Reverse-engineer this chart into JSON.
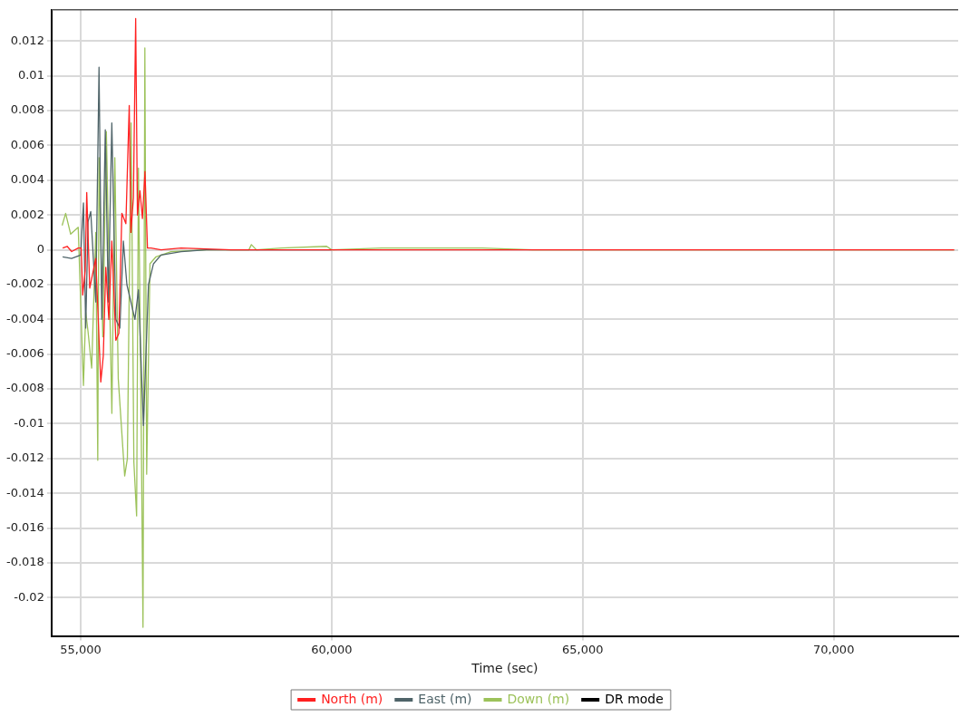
{
  "chart_data": {
    "type": "line",
    "xlabel": "Time (sec)",
    "xlim": [
      54420,
      72480
    ],
    "xticks": [
      {
        "value": 55000,
        "label": "55,000"
      },
      {
        "value": 60000,
        "label": "60,000"
      },
      {
        "value": 65000,
        "label": "65,000"
      },
      {
        "value": 70000,
        "label": "70,000"
      }
    ],
    "ylim": [
      -0.0222,
      0.0138
    ],
    "yticks": [
      -0.02,
      -0.018,
      -0.016,
      -0.014,
      -0.012,
      -0.01,
      -0.008,
      -0.006,
      -0.004,
      -0.002,
      0,
      0.002,
      0.004,
      0.006,
      0.008,
      0.01,
      0.012
    ],
    "grid": true,
    "legend": "bottom",
    "marker": "none",
    "line_style": "solid",
    "series": [
      {
        "name": "North (m)",
        "color": "#ff2020",
        "x": [
          54640,
          54730,
          54820,
          54950,
          55010,
          55040,
          55090,
          55120,
          55180,
          55300,
          55400,
          55450,
          55500,
          55560,
          55620,
          55700,
          55760,
          55820,
          55900,
          55967,
          56000,
          56050,
          56095,
          56130,
          56180,
          56230,
          56280,
          56330,
          56400,
          56600,
          57000,
          58000,
          60000,
          65000,
          72400
        ],
        "values": [
          0.0001,
          0.0002,
          -0.0001,
          0.0001,
          0.0001,
          -0.0026,
          -0.0012,
          0.0033,
          -0.0022,
          -0.0005,
          -0.0076,
          -0.0061,
          -0.001,
          -0.004,
          0.0005,
          -0.0052,
          -0.0048,
          0.0021,
          0.0015,
          0.0083,
          0.001,
          0.003,
          0.0133,
          0.002,
          0.0034,
          0.0018,
          0.0045,
          0.0001,
          0.0001,
          0,
          0.0001,
          0,
          0,
          0,
          0
        ]
      },
      {
        "name": "East (m)",
        "color": "#4f6469",
        "x": [
          54640,
          54818,
          55000,
          55055,
          55100,
          55146,
          55200,
          55300,
          55365,
          55420,
          55490,
          55550,
          55620,
          55700,
          55780,
          55850,
          55920,
          56000,
          56080,
          56150,
          56250,
          56300,
          56350,
          56450,
          56600,
          57000,
          57500,
          60000
        ],
        "values": [
          -0.0004,
          -0.0005,
          -0.0003,
          0.0027,
          -0.0045,
          0.0016,
          0.0022,
          -0.003,
          0.0105,
          -0.004,
          0.0069,
          -0.003,
          0.0073,
          -0.004,
          -0.0045,
          0.0005,
          -0.002,
          -0.003,
          -0.004,
          -0.0023,
          -0.0101,
          -0.006,
          -0.002,
          -0.0008,
          -0.0003,
          -0.0001,
          0,
          0
        ]
      },
      {
        "name": "Down (m)",
        "color": "#9cc25a",
        "x": [
          54630,
          54700,
          54800,
          54950,
          55055,
          55100,
          55146,
          55219,
          55300,
          55340,
          55365,
          55440,
          55511,
          55621,
          55680,
          55748,
          55876,
          55930,
          56004,
          56059,
          56114,
          56150,
          56205,
          56241,
          56278,
          56314,
          56380,
          56500,
          56800,
          57500,
          58350,
          58400,
          58500,
          59000,
          59900,
          60000,
          61000,
          62000,
          63000,
          64000,
          72400
        ],
        "values": [
          0.0014,
          0.0021,
          0.0009,
          0.0013,
          -0.0078,
          -0.0036,
          -0.0047,
          -0.0068,
          0.001,
          -0.0121,
          0.0053,
          -0.005,
          0.0068,
          -0.0094,
          0.0053,
          -0.0074,
          -0.013,
          -0.012,
          0.0073,
          -0.0122,
          -0.0153,
          0.0047,
          -0.01,
          -0.0217,
          0.0116,
          -0.0129,
          -0.0008,
          -0.0004,
          -0.0001,
          0,
          0,
          0.0003,
          0,
          0.0001,
          0.0002,
          0,
          0.0001,
          0.0001,
          0.0001,
          0,
          0
        ]
      },
      {
        "name": "DR mode",
        "color": "#000000"
      }
    ]
  }
}
